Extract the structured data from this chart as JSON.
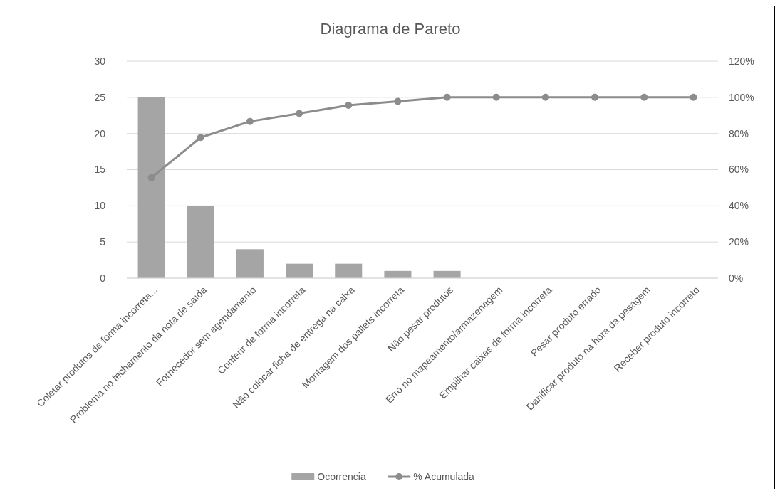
{
  "chart_data": {
    "type": "bar",
    "title": "Diagrama de Pareto",
    "categories": [
      "Coletar produtos de forma incorreta...",
      "Problema no fechamento da nota de saída",
      "Fornecedor sem agendamento",
      "Conferir de forma incorreta",
      "Não colocar ficha de entrega na caixa",
      "Montagem dos pallets incorreta",
      "Não pesar produtos",
      "Erro no mapeamento/armazenagem",
      "Empilhar caixas de forma incorreta",
      "Pesar produto errado",
      "Danificar produto na hora da pesagem",
      "Receber produto incorreto"
    ],
    "series": [
      {
        "name": "Ocorrencia",
        "color": "#a5a5a5",
        "values": [
          25,
          10,
          4,
          2,
          2,
          1,
          1,
          0,
          0,
          0,
          0,
          0
        ]
      },
      {
        "name": "% Acumulada",
        "type": "line",
        "axis": "y2",
        "color": "#8c8c8c",
        "values": [
          55.6,
          77.8,
          86.7,
          91.1,
          95.6,
          97.8,
          100,
          100,
          100,
          100,
          100,
          100
        ]
      }
    ],
    "ylim": [
      0,
      30
    ],
    "yticks": [
      0,
      5,
      10,
      15,
      20,
      25,
      30
    ],
    "y2lim": [
      0,
      120
    ],
    "y2ticks": [
      {
        "value": 0,
        "label": "0%"
      },
      {
        "value": 20,
        "label": "20%"
      },
      {
        "value": 40,
        "label": "40%"
      },
      {
        "value": 60,
        "label": "60%"
      },
      {
        "value": 80,
        "label": "80%"
      },
      {
        "value": 100,
        "label": "100%"
      },
      {
        "value": 120,
        "label": "120%"
      }
    ],
    "grid": "y",
    "legend": "bottom",
    "marker": "circle",
    "line_style": "solid"
  }
}
